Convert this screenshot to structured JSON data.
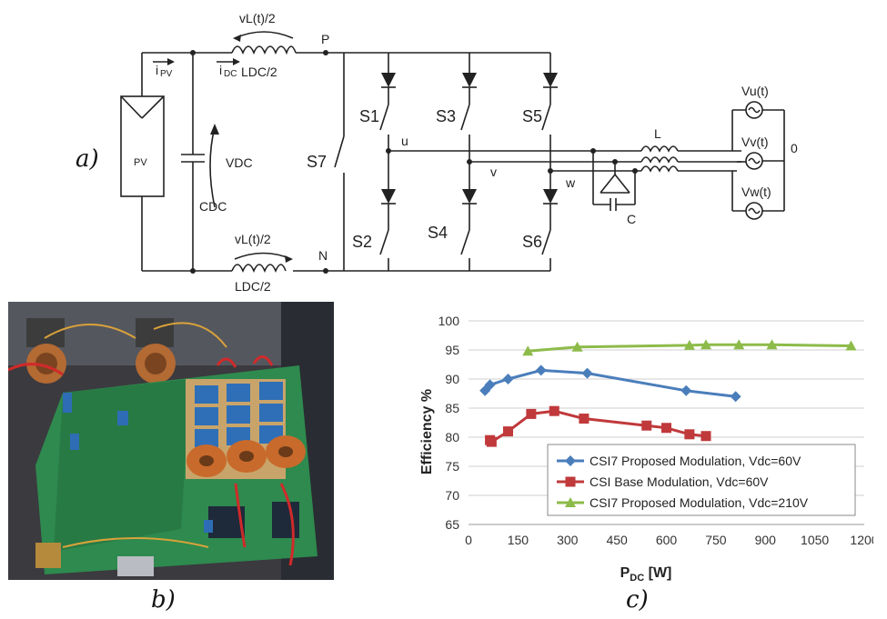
{
  "panel_labels": {
    "a": "a)",
    "b": "b)",
    "c": "c)"
  },
  "circuit": {
    "pv": "PV",
    "ipv": "i",
    "ipv_sub": "PV",
    "idc": "i",
    "idc_sub": "DC",
    "vl_top": "vL(t)/2",
    "vl_bottom": "vL(t)/2",
    "ldc_top": "LDC/2",
    "ldc_bottom": "LDC/2",
    "node_p": "P",
    "node_n": "N",
    "vdc": "VDC",
    "cdc": "CDC",
    "s1": "S1",
    "s2": "S2",
    "s3": "S3",
    "s4": "S4",
    "s5": "S5",
    "s6": "S6",
    "s7": "S7",
    "u": "u",
    "v": "v",
    "w": "w",
    "l": "L",
    "c": "C",
    "zero": "0",
    "vu": "Vu(t)",
    "vv": "Vv(t)",
    "vw": "Vw(t)"
  },
  "chart_data": {
    "type": "line",
    "xlabel": "PDC [W]",
    "ylabel": "Efficiency %",
    "xlim": [
      0,
      1200
    ],
    "ylim": [
      65,
      100
    ],
    "xticks": [
      0,
      150,
      300,
      450,
      600,
      750,
      900,
      1050,
      1200
    ],
    "yticks": [
      65,
      70,
      75,
      80,
      85,
      90,
      95,
      100
    ],
    "grid": true,
    "legend_position": "bottom-right inside",
    "series": [
      {
        "name": "CSI7 Proposed Modulation, Vdc=60V",
        "color": "#4a7ebb",
        "marker": "diamond",
        "x": [
          50,
          65,
          120,
          220,
          360,
          660,
          810
        ],
        "y": [
          88,
          89,
          90,
          91.5,
          91,
          88,
          87
        ]
      },
      {
        "name": "CSI Base Modulation, Vdc=60V",
        "color": "#c0393b",
        "marker": "square",
        "x": [
          65,
          70,
          120,
          190,
          260,
          350,
          540,
          600,
          670,
          720
        ],
        "y": [
          79.5,
          79.2,
          81,
          84,
          84.5,
          83.2,
          82,
          81.6,
          80.5,
          80.2
        ]
      },
      {
        "name": "CSI7 Proposed Modulation, Vdc=210V",
        "color": "#8dbb4a",
        "marker": "triangle",
        "x": [
          180,
          330,
          670,
          720,
          820,
          920,
          1160
        ],
        "y": [
          94.8,
          95.5,
          95.8,
          95.9,
          95.9,
          95.9,
          95.7
        ]
      }
    ]
  }
}
